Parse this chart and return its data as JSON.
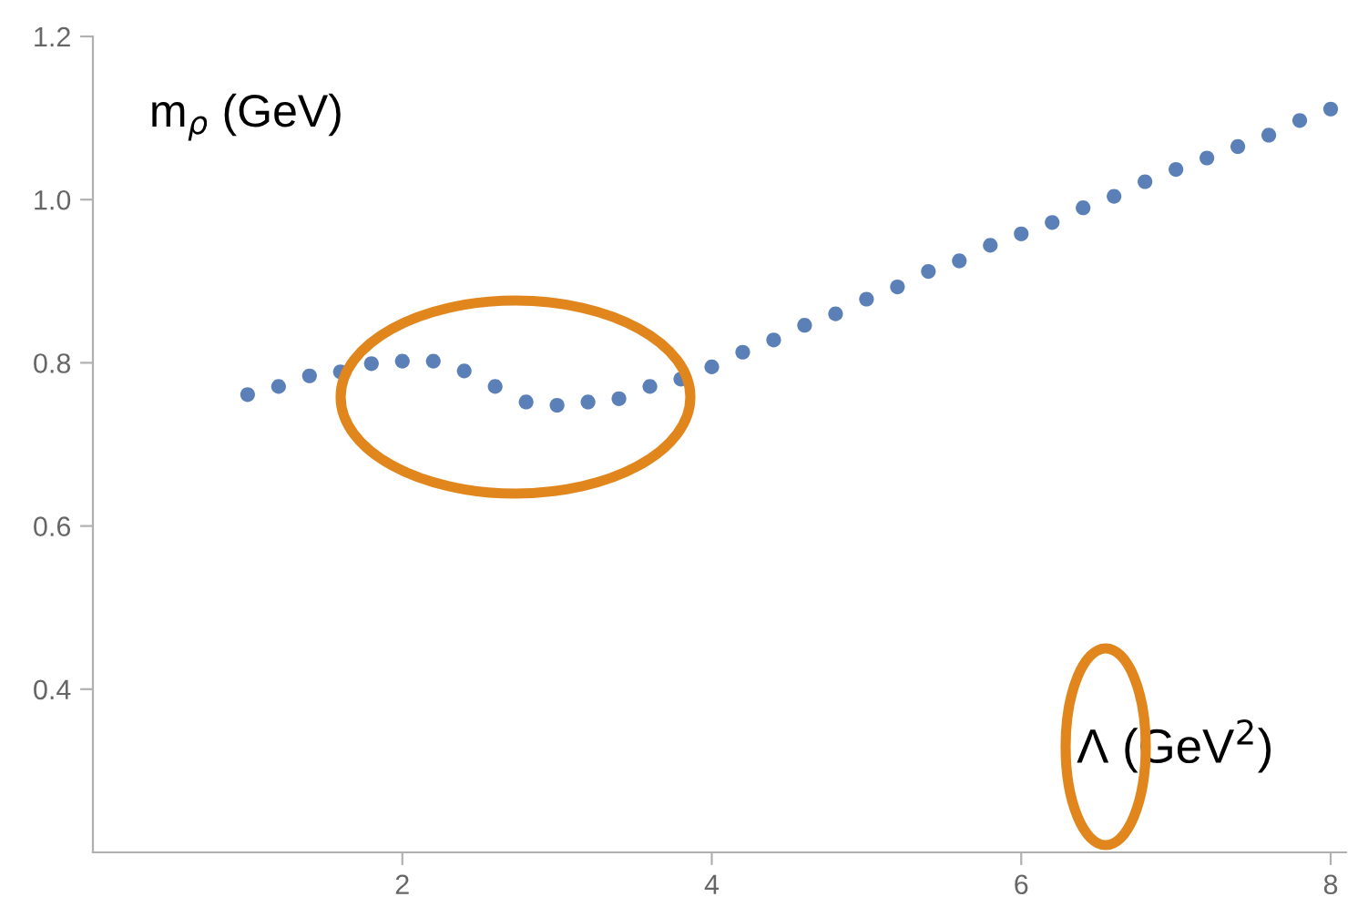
{
  "chart_data": {
    "type": "scatter",
    "xlabel": "Λ (GeV$^{2}$)",
    "ylabel": "m$_{ρ}$ (GeV)",
    "x": [
      1.0,
      1.2,
      1.4,
      1.6,
      1.8,
      2.0,
      2.2,
      2.4,
      2.6,
      2.8,
      3.0,
      3.2,
      3.4,
      3.6,
      3.8,
      4.0,
      4.2,
      4.4,
      4.6,
      4.8,
      5.0,
      5.2,
      5.4,
      5.6,
      5.8,
      6.0,
      6.2,
      6.4,
      6.6,
      6.8,
      7.0,
      7.2,
      7.4,
      7.6,
      7.8,
      8.0
    ],
    "series": [
      {
        "color": "#5b80b8",
        "values": [
          0.761,
          0.771,
          0.784,
          0.789,
          0.799,
          0.802,
          0.802,
          0.79,
          0.771,
          0.752,
          0.748,
          0.752,
          0.756,
          0.771,
          0.78,
          0.795,
          0.813,
          0.828,
          0.846,
          0.86,
          0.878,
          0.893,
          0.912,
          0.925,
          0.944,
          0.958,
          0.972,
          0.99,
          1.004,
          1.022,
          1.037,
          1.051,
          1.065,
          1.079,
          1.097,
          1.111
        ]
      }
    ],
    "marker": "circle",
    "xlim": [
      0,
      8.1
    ],
    "ylim": [
      0.2,
      1.2
    ],
    "xticks": [
      2,
      4,
      6,
      8
    ],
    "yticks": [
      0.4,
      0.6,
      0.8,
      {
        "value": 1.0,
        "label": "1.0"
      },
      1.2
    ],
    "grid": false,
    "legend": false
  }
}
